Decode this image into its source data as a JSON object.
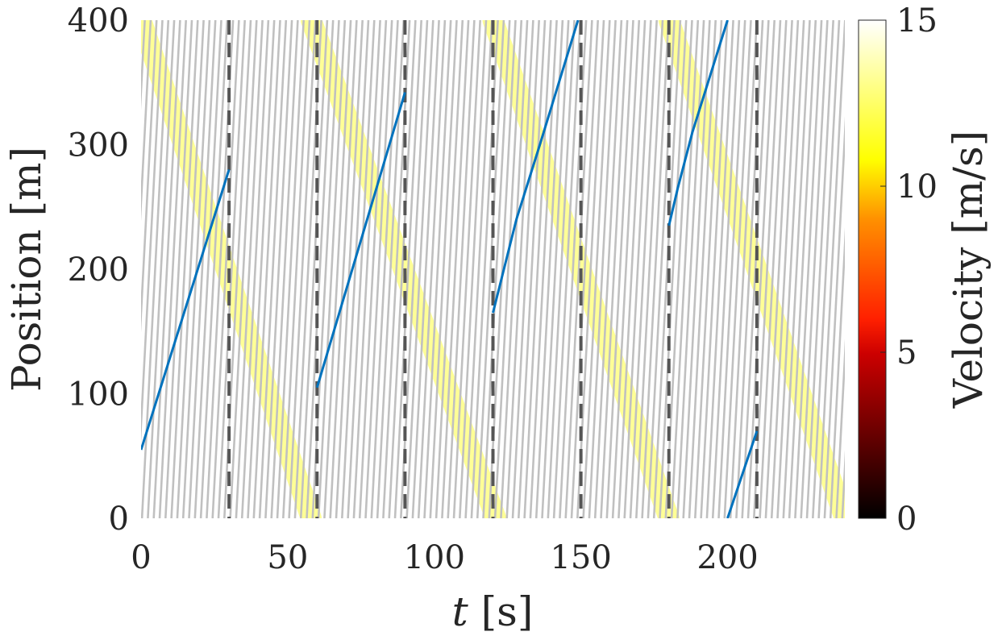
{
  "chart_data": {
    "type": "heatmap",
    "title": "",
    "xlabel": "t",
    "xlabel_unit": "[s]",
    "ylabel": "Position [m]",
    "xlim": [
      0,
      240
    ],
    "ylim": [
      0,
      400
    ],
    "xticks": [
      0,
      50,
      100,
      150,
      200
    ],
    "yticks": [
      0,
      100,
      200,
      300,
      400
    ],
    "colorbar": {
      "label": "Velocity [m/s]",
      "range": [
        0,
        15
      ],
      "ticks": [
        0,
        5,
        10,
        15
      ],
      "colormap": "hot"
    },
    "vertical_dashed_lines_x": [
      30,
      60,
      90,
      120,
      150,
      180,
      210
    ],
    "vertical_line_color": "#555555",
    "trajectory_color": "#0072BD",
    "background_trajectory_color": "#c0c0c0",
    "slow_wave_color": "#ffff40",
    "highlighted_trajectory": [
      {
        "x": [
          0,
          30
        ],
        "y": [
          55,
          280
        ]
      },
      {
        "x": [
          60,
          90
        ],
        "y": [
          105,
          342
        ]
      },
      {
        "x": [
          120,
          128,
          136,
          149
        ],
        "y": [
          165,
          240,
          300,
          400
        ]
      },
      {
        "x": [
          180,
          183,
          188,
          200
        ],
        "y": [
          235,
          265,
          310,
          400
        ]
      },
      {
        "x": [
          200,
          210
        ],
        "y": [
          0,
          70
        ]
      }
    ],
    "wave_bands": [
      {
        "x_at_top": 0,
        "x_at_bottom": 58
      },
      {
        "x_at_top": 58,
        "x_at_bottom": 121
      },
      {
        "x_at_top": 120,
        "x_at_bottom": 180
      },
      {
        "x_at_top": 180,
        "x_at_bottom": 240
      }
    ]
  }
}
